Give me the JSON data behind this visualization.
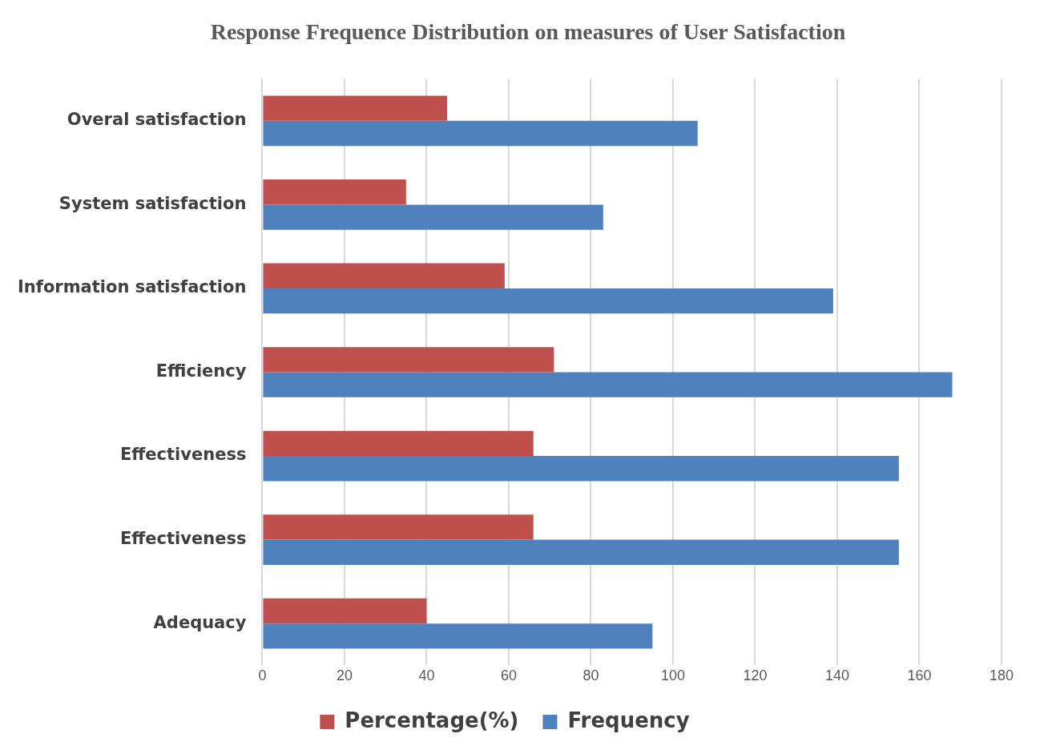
{
  "chart_data": {
    "type": "bar",
    "orientation": "horizontal",
    "title": "Response Frequence Distribution on measures of User Satisfaction",
    "categories": [
      "Overal satisfaction",
      "System satisfaction",
      "Information satisfaction",
      "Efficiency",
      "Effectiveness",
      "Effectiveness",
      "Adequacy"
    ],
    "series": [
      {
        "name": "Percentage(%)",
        "color": "#c0504d",
        "values": [
          45,
          35,
          59,
          71,
          66,
          66,
          40
        ]
      },
      {
        "name": "Frequency",
        "color": "#4f81bd",
        "values": [
          106,
          83,
          139,
          168,
          155,
          155,
          95
        ]
      }
    ],
    "xlim": [
      0,
      180
    ],
    "xticks": [
      0,
      20,
      40,
      60,
      80,
      100,
      120,
      140,
      160,
      180
    ],
    "grid": "x",
    "legend": "bottom"
  }
}
